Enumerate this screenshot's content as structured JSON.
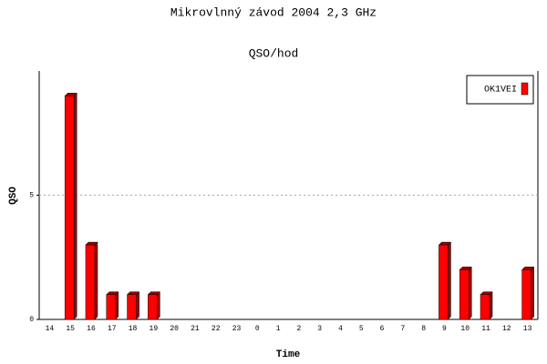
{
  "chart_data": {
    "type": "bar",
    "title": "Mikrovlnný závod 2004 2,3 GHz",
    "subtitle": "QSO/hod",
    "x_label": "Time",
    "y_label": "QSO",
    "categories": [
      "14",
      "15",
      "16",
      "17",
      "18",
      "19",
      "20",
      "21",
      "22",
      "23",
      "0",
      "1",
      "2",
      "3",
      "4",
      "5",
      "6",
      "7",
      "8",
      "9",
      "10",
      "11",
      "12",
      "13"
    ],
    "series": [
      {
        "name": "OK1VEI",
        "color": "#ff0000",
        "values": [
          0,
          9,
          3,
          1,
          1,
          1,
          0,
          0,
          0,
          0,
          0,
          0,
          0,
          0,
          0,
          0,
          0,
          0,
          0,
          3,
          2,
          1,
          0,
          2
        ]
      }
    ],
    "ylim": [
      0,
      10
    ],
    "yticks": [
      0,
      5
    ],
    "grid": true,
    "legend": "top-right"
  }
}
